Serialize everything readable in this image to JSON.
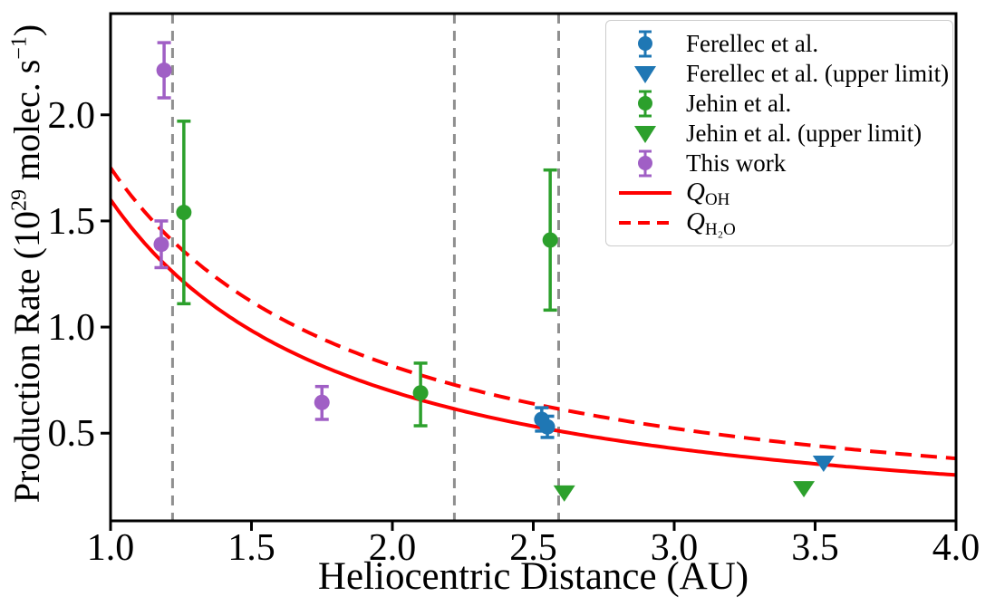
{
  "chart_data": {
    "type": "scatter",
    "title": "",
    "xlabel": "Heliocentric Distance (AU)",
    "ylabel": "Production Rate (10^29 molec. s^-1)",
    "ylabel_parts": {
      "pre": "Production Rate (10",
      "sup1": "29",
      "mid": " molec. s",
      "sup2": "−1",
      "post": ")"
    },
    "xlim": [
      1.0,
      4.0
    ],
    "ylim": [
      0.087,
      2.477
    ],
    "x_tick_values": [
      1.0,
      1.5,
      2.0,
      2.5,
      3.0,
      3.5,
      4.0
    ],
    "x_tick_labels": [
      "1.0",
      "1.5",
      "2.0",
      "2.5",
      "3.0",
      "3.5",
      "4.0"
    ],
    "y_tick_values": [
      0.5,
      1.0,
      1.5,
      2.0
    ],
    "y_tick_labels": [
      "0.5",
      "1.0",
      "1.5",
      "2.0"
    ],
    "grid": false,
    "legend_position": "upper right",
    "vlines": {
      "x": [
        1.22,
        2.22,
        2.59
      ],
      "color": "#8f8f8f",
      "style": "dashed"
    },
    "series": [
      {
        "name": "Ferellec et al.",
        "marker": "circle-errorbar",
        "color": "#1f77b4",
        "points": [
          {
            "x": 2.53,
            "y": 0.565,
            "err_plus": 0.055,
            "err_minus": 0.055
          },
          {
            "x": 2.55,
            "y": 0.53,
            "err_plus": 0.05,
            "err_minus": 0.05
          }
        ]
      },
      {
        "name": "Ferellec et al. (upper limit)",
        "marker": "triangle-down",
        "color": "#1f77b4",
        "points": [
          {
            "x": 3.53,
            "y": 0.36
          }
        ]
      },
      {
        "name": "Jehin et al.",
        "marker": "circle-errorbar",
        "color": "#2ca02c",
        "points": [
          {
            "x": 1.26,
            "y": 1.54,
            "err_plus": 0.43,
            "err_minus": 0.43
          },
          {
            "x": 2.1,
            "y": 0.69,
            "err_plus": 0.14,
            "err_minus": 0.155
          },
          {
            "x": 2.56,
            "y": 1.41,
            "err_plus": 0.33,
            "err_minus": 0.33
          }
        ]
      },
      {
        "name": "Jehin et al. (upper limit)",
        "marker": "triangle-down",
        "color": "#2ca02c",
        "points": [
          {
            "x": 2.61,
            "y": 0.22
          },
          {
            "x": 3.46,
            "y": 0.24
          }
        ]
      },
      {
        "name": "This work",
        "marker": "circle-errorbar",
        "color": "#a05fc5",
        "points": [
          {
            "x": 1.19,
            "y": 2.21,
            "err_plus": 0.13,
            "err_minus": 0.13
          },
          {
            "x": 1.18,
            "y": 1.39,
            "err_plus": 0.11,
            "err_minus": 0.11
          },
          {
            "x": 1.75,
            "y": 0.645,
            "err_plus": 0.075,
            "err_minus": 0.08
          }
        ]
      }
    ],
    "curves": [
      {
        "name": "Q_OH",
        "style": "solid",
        "color": "#ff0000",
        "model": "power-law",
        "coefficient": 1.6,
        "exponent": -1.2,
        "x_start": 1.0,
        "x_end": 4.0
      },
      {
        "name": "Q_H2O",
        "style": "dashed",
        "color": "#ff0000",
        "model": "power-law",
        "coefficient": 1.75,
        "exponent": -1.1,
        "x_start": 1.0,
        "x_end": 4.0
      }
    ]
  },
  "legend": {
    "entries": [
      {
        "label": "Ferellec et al.",
        "marker": "circle-errorbar",
        "color": "#1f77b4"
      },
      {
        "label": "Ferellec et al. (upper limit)",
        "marker": "triangle-down",
        "color": "#1f77b4"
      },
      {
        "label": "Jehin et al.",
        "marker": "circle-errorbar",
        "color": "#2ca02c"
      },
      {
        "label": "Jehin et al. (upper limit)",
        "marker": "triangle-down",
        "color": "#2ca02c"
      },
      {
        "label": "This work",
        "marker": "circle-errorbar",
        "color": "#a05fc5"
      },
      {
        "label_main": "Q",
        "label_sub": "OH",
        "marker": "solid-line",
        "color": "#ff0000"
      },
      {
        "label_main": "Q",
        "label_sub": "H₂O",
        "marker": "dashed-line",
        "color": "#ff0000"
      }
    ]
  }
}
